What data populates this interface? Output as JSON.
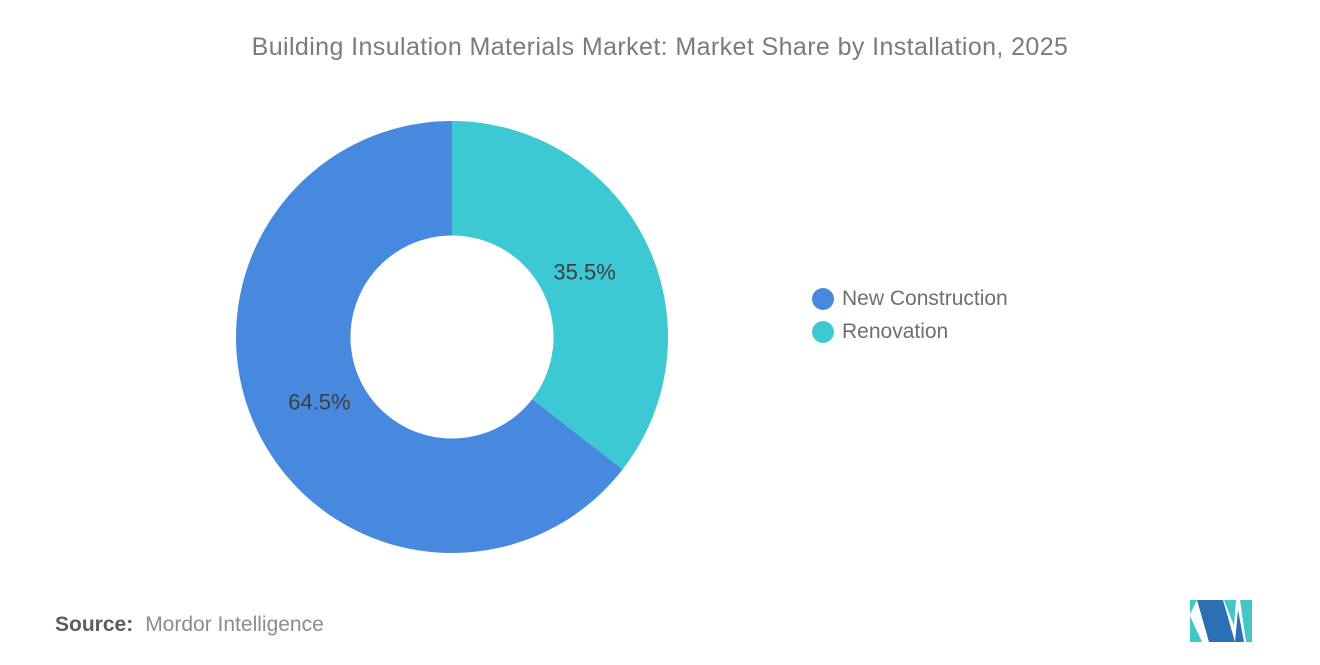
{
  "title": "Building Insulation Materials Market: Market Share by Installation, 2025",
  "chart_data": {
    "type": "pie",
    "subtype": "donut",
    "title": "Building Insulation Materials Market: Market Share by Installation, 2025",
    "segments": [
      {
        "label": "New Construction",
        "value": 64.5,
        "color": "#4889E0"
      },
      {
        "label": "Renovation",
        "value": 35.5,
        "color": "#3DC9D3"
      }
    ],
    "start_angle_deg": 127.8,
    "inner_radius_ratio": 0.47,
    "label_format": "{value}%",
    "label_color": "#3e3e3e",
    "legend_position": "right",
    "legend_labels": [
      "New Construction",
      "Renovation"
    ],
    "data_labels": [
      "64.5%",
      "35.5%"
    ]
  },
  "source": {
    "label": "Source:",
    "value": "Mordor Intelligence"
  },
  "logo": {
    "icon": "mordor-intelligence-logo",
    "blue": "#2C6FB5",
    "teal": "#43C7C3"
  }
}
